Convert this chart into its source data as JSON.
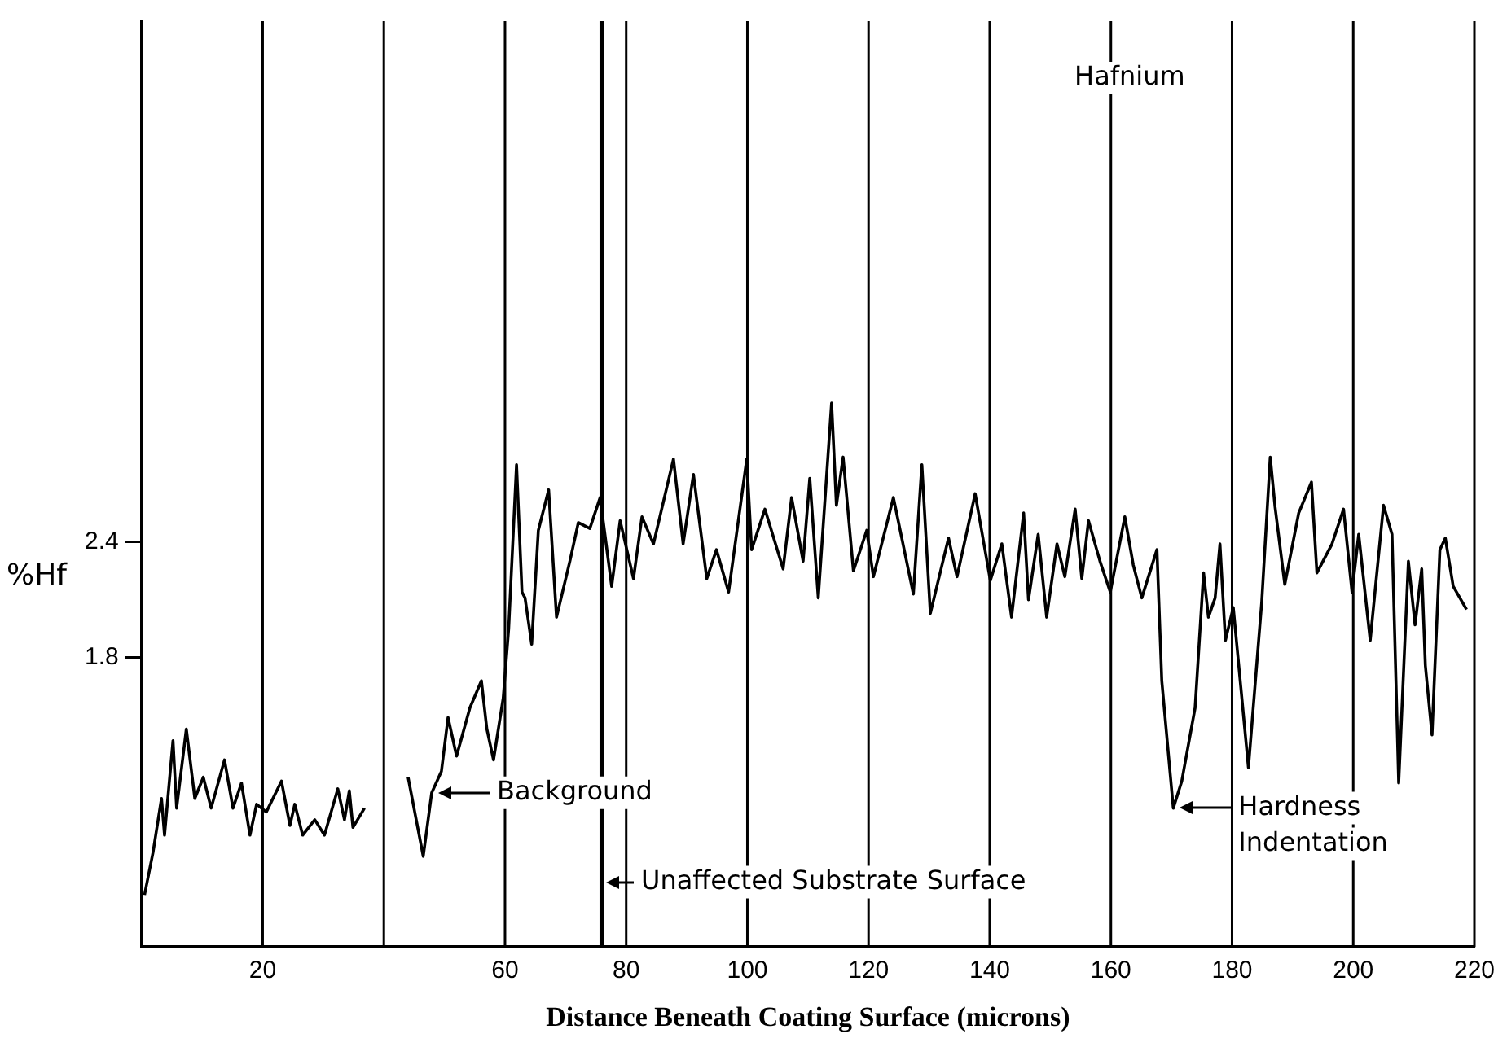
{
  "chart_data": {
    "type": "line",
    "ylabel": "%Hf",
    "xlabel": "Distance Beneath Coating Surface (microns)",
    "xlim": [
      0,
      220
    ],
    "xticks": [
      20,
      60,
      80,
      100,
      120,
      140,
      160,
      180,
      200,
      220
    ],
    "ylim": [
      0.3,
      5.1
    ],
    "yticks": [
      1.8,
      2.4
    ],
    "grid": "x",
    "marker": "none",
    "color": "#000000",
    "x": [
      0.5,
      1.9,
      3.3,
      3.8,
      5.2,
      5.8,
      7.4,
      8.8,
      10.2,
      11.5,
      13.7,
      15.1,
      16.5,
      17.9,
      19.0,
      20.6,
      23.1,
      24.5,
      25.3,
      26.6,
      28.6,
      30.2,
      32.4,
      33.5,
      34.3,
      34.9,
      36.8,
      40.0,
      44.0,
      46.5,
      47.9,
      49.5,
      50.6,
      52.0,
      54.2,
      56.1,
      57.0,
      58.1,
      59.7,
      60.6,
      61.9,
      62.8,
      63.3,
      64.4,
      65.5,
      67.2,
      68.5,
      70.7,
      72.1,
      74.0,
      75.7,
      77.6,
      79.0,
      81.2,
      82.6,
      84.5,
      87.8,
      89.4,
      91.1,
      93.3,
      94.9,
      96.9,
      99.9,
      100.7,
      102.9,
      105.9,
      107.3,
      109.2,
      110.3,
      111.7,
      113.9,
      114.7,
      115.8,
      117.5,
      119.7,
      120.8,
      124.1,
      127.4,
      128.8,
      130.2,
      133.2,
      134.6,
      137.6,
      140.1,
      142.0,
      143.6,
      145.6,
      146.4,
      148.0,
      149.4,
      151.1,
      152.4,
      154.1,
      155.2,
      156.3,
      158.2,
      159.9,
      162.3,
      163.7,
      165.1,
      167.6,
      168.4,
      170.3,
      171.7,
      173.9,
      175.3,
      176.1,
      177.2,
      178.0,
      178.9,
      180.2,
      182.7,
      184.9,
      186.3,
      187.1,
      188.7,
      191.0,
      193.1,
      194.0,
      196.5,
      198.4,
      199.8,
      200.9,
      202.8,
      205.0,
      206.4,
      207.5,
      209.1,
      210.2,
      211.3,
      211.9,
      213.0,
      214.3,
      215.2,
      216.5,
      218.7
    ],
    "values": [
      0.57,
      0.79,
      1.07,
      0.88,
      1.37,
      1.02,
      1.43,
      1.07,
      1.18,
      1.02,
      1.27,
      1.02,
      1.15,
      0.88,
      1.04,
      1.0,
      1.16,
      0.93,
      1.04,
      0.88,
      0.96,
      0.88,
      1.12,
      0.96,
      1.11,
      0.92,
      1.02,
      null,
      1.18,
      0.77,
      1.1,
      1.21,
      1.49,
      1.29,
      1.54,
      1.68,
      1.43,
      1.27,
      1.59,
      1.95,
      2.8,
      2.14,
      2.11,
      1.87,
      2.46,
      2.67,
      2.01,
      2.3,
      2.5,
      2.47,
      2.63,
      2.17,
      2.51,
      2.21,
      2.53,
      2.39,
      2.83,
      2.39,
      2.75,
      2.21,
      2.36,
      2.14,
      2.83,
      2.36,
      2.57,
      2.26,
      2.63,
      2.3,
      2.73,
      2.11,
      3.12,
      2.59,
      2.84,
      2.25,
      2.46,
      2.22,
      2.63,
      2.13,
      2.8,
      2.03,
      2.42,
      2.22,
      2.65,
      2.2,
      2.39,
      2.01,
      2.55,
      2.1,
      2.44,
      2.01,
      2.39,
      2.22,
      2.57,
      2.21,
      2.51,
      2.3,
      2.14,
      2.53,
      2.28,
      2.11,
      2.36,
      1.68,
      1.02,
      1.16,
      1.54,
      2.24,
      2.01,
      2.11,
      2.39,
      1.89,
      2.06,
      1.23,
      2.09,
      2.84,
      2.58,
      2.18,
      2.55,
      2.71,
      2.24,
      2.39,
      2.57,
      2.14,
      2.44,
      1.89,
      2.59,
      2.44,
      1.15,
      2.3,
      1.97,
      2.26,
      1.76,
      1.4,
      2.36,
      2.42,
      2.17,
      2.05
    ],
    "ref_lines": [
      {
        "axis": "x",
        "value": 40
      },
      {
        "axis": "x",
        "value": 76,
        "label": "Unaffected Substrate Surface"
      }
    ],
    "annotations": [
      "Hafnium",
      {
        "text": "Background",
        "x": 47.9,
        "y": 1.1
      },
      {
        "text": "Hardness Indentation",
        "x": 170.3,
        "y": 1.02
      }
    ]
  }
}
